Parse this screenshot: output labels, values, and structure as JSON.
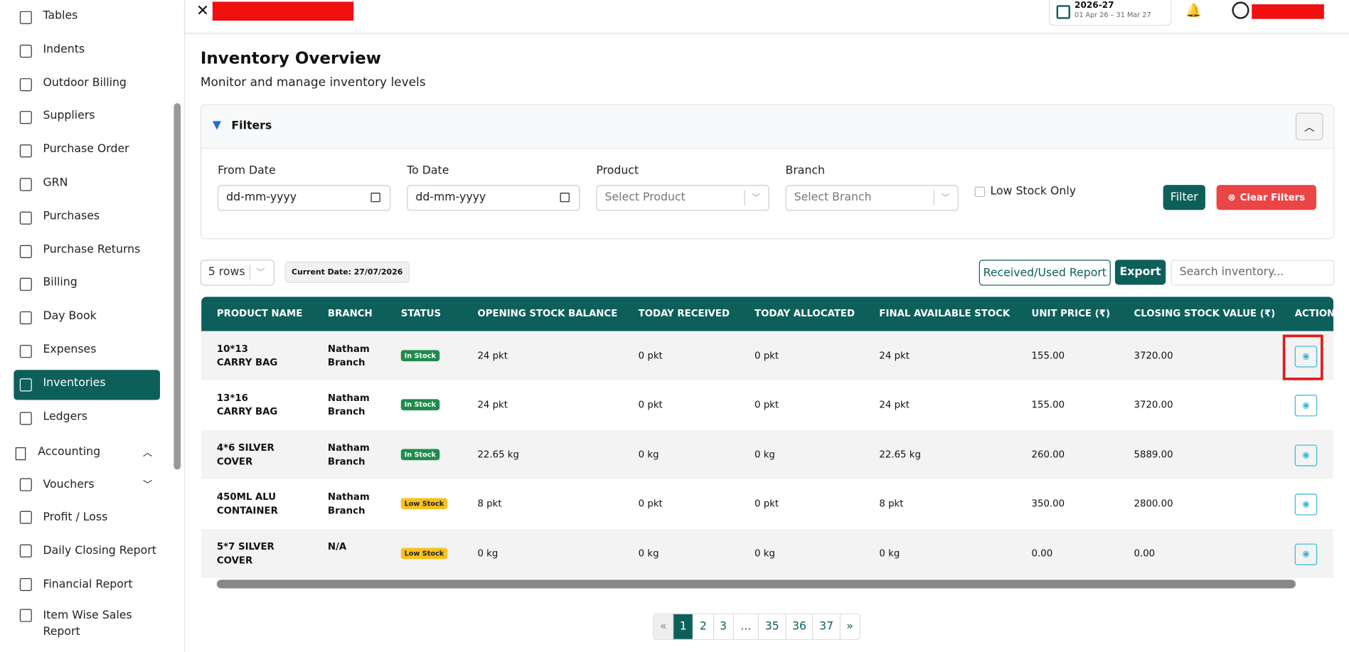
{
  "header": {
    "year": "2026-27",
    "range": "01 Apr 26 – 31 Mar 27"
  },
  "sidebar": {
    "items": [
      "Tables",
      "Indents",
      "Outdoor Billing",
      "Suppliers",
      "Purchase Order",
      "GRN",
      "Purchases",
      "Purchase Returns",
      "Billing",
      "Day Book",
      "Expenses",
      "Inventories",
      "Ledgers"
    ],
    "section": "Accounting",
    "sub_items": [
      "Vouchers",
      "Profit / Loss",
      "Daily Closing Report",
      "Financial Report",
      "Item Wise Sales Report"
    ]
  },
  "page": {
    "title": "Inventory Overview",
    "subtitle": "Monitor and manage inventory levels"
  },
  "filters": {
    "title": "Filters",
    "fields": [
      {
        "label": "From Date",
        "value": "dd-mm-yyyy"
      },
      {
        "label": "To Date",
        "value": "dd-mm-yyyy"
      },
      {
        "label": "Product",
        "value": "Select Product"
      },
      {
        "label": "Branch",
        "value": "Select Branch"
      }
    ],
    "low_stock": "Low Stock Only",
    "filter_button": "Filter",
    "clear_button": "Clear Filters"
  },
  "toolbar": {
    "rows": "5 rows",
    "current_date": "Current Date: 27/07/2026",
    "report_button": "Received/Used Report",
    "export_button": "Export",
    "search": "Search inventory..."
  },
  "table": {
    "columns": [
      "PRODUCT NAME",
      "BRANCH",
      "STATUS",
      "OPENING STOCK BALANCE",
      "TODAY RECEIVED",
      "TODAY ALLOCATED",
      "FINAL AVAILABLE STOCK",
      "UNIT PRICE (₹)",
      "CLOSING STOCK VALUE (₹)",
      "ACTION"
    ],
    "rows": [
      [
        "10*13 CARRY BAG",
        "Natham Branch",
        "In Stock",
        "24 pkt",
        "0 pkt",
        "0 pkt",
        "24 pkt",
        "155.00",
        "3720.00"
      ],
      [
        "13*16 CARRY BAG",
        "Natham Branch",
        "In Stock",
        "24 pkt",
        "0 pkt",
        "0 pkt",
        "24 pkt",
        "155.00",
        "3720.00"
      ],
      [
        "4*6 SILVER COVER",
        "Natham Branch",
        "In Stock",
        "22.65 kg",
        "0 kg",
        "0 kg",
        "22.65 kg",
        "260.00",
        "5889.00"
      ],
      [
        "450ML ALU CONTAINER",
        "Natham Branch",
        "Low Stock",
        "8 pkt",
        "0 pkt",
        "0 pkt",
        "8 pkt",
        "350.00",
        "2800.00"
      ],
      [
        "5*7 SILVER COVER",
        "N/A",
        "Low Stock",
        "0 kg",
        "0 kg",
        "0 kg",
        "0 kg",
        "0.00",
        "0.00"
      ]
    ]
  },
  "pagination": [
    "«",
    "1",
    "2",
    "3",
    "...",
    "35",
    "36",
    "37",
    "»"
  ]
}
